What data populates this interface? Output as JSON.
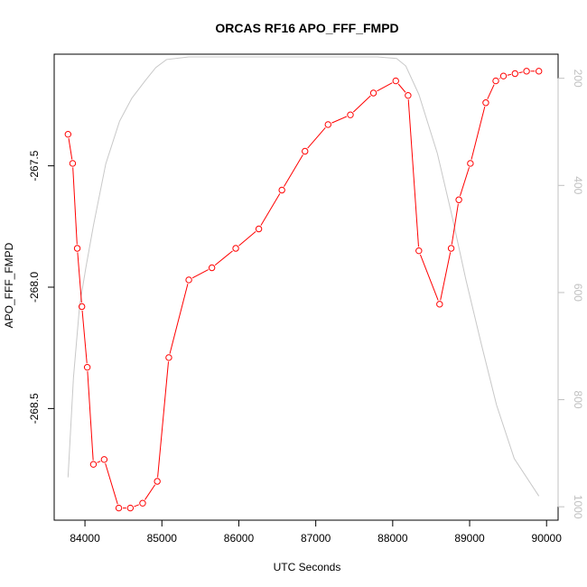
{
  "chart_data": {
    "type": "line",
    "title": "ORCAS RF16 APO_FFF_FMPD",
    "xlabel": "UTC Seconds",
    "ylabel": "APO_FFF_FMPD",
    "xlim": [
      83600,
      90150
    ],
    "ylim": [
      -268.96,
      -267.04
    ],
    "y2lim": [
      1025,
      155
    ],
    "x_ticks": [
      84000,
      85000,
      86000,
      87000,
      88000,
      89000,
      90000
    ],
    "x_tick_labels": [
      "84000",
      "85000",
      "86000",
      "87000",
      "88000",
      "89000",
      "90000"
    ],
    "y_ticks": [
      -267.5,
      -268.0,
      -268.5
    ],
    "y_tick_labels": [
      "-267.5",
      "-268.0",
      "-268.5"
    ],
    "y2_ticks": [
      200,
      400,
      600,
      800,
      1000
    ],
    "y2_tick_labels": [
      "200",
      "400",
      "600",
      "800",
      "1000"
    ],
    "grid": false,
    "colors": {
      "series": "#ff0000",
      "secondary": "#c8c8c8",
      "frame": "#000000",
      "secondary_axis": "#c0c0c0"
    },
    "series": [
      {
        "x": [
          83780,
          83840,
          83900,
          83960,
          84030,
          84110,
          84250,
          84440,
          84590,
          84750,
          84940,
          85090,
          85350,
          85650,
          85960,
          86260,
          86560,
          86860,
          87160,
          87450,
          87750,
          88040,
          88200,
          88340,
          88610,
          88760,
          88860,
          89010,
          89210,
          89340,
          89440,
          89590,
          89740,
          89900
        ],
        "values": [
          -267.37,
          -267.49,
          -267.84,
          -268.08,
          -268.33,
          -268.73,
          -268.71,
          -268.91,
          -268.91,
          -268.89,
          -268.8,
          -268.29,
          -267.97,
          -267.92,
          -267.84,
          -267.76,
          -267.6,
          -267.44,
          -267.33,
          -267.29,
          -267.2,
          -267.15,
          -267.21,
          -267.85,
          -268.07,
          -267.84,
          -267.64,
          -267.49,
          -267.24,
          -267.15,
          -267.13,
          -267.12,
          -267.11,
          -267.11
        ]
      },
      {
        "axis": "right",
        "x": [
          83780,
          83850,
          83930,
          84010,
          84110,
          84270,
          84450,
          84610,
          84780,
          84920,
          85060,
          85350,
          85700,
          86500,
          87200,
          87800,
          88050,
          88170,
          88340,
          88580,
          88760,
          88950,
          89150,
          89350,
          89580,
          89900
        ],
        "values": [
          945,
          760,
          625,
          555,
          475,
          360,
          280,
          237,
          205,
          180,
          165,
          160,
          160,
          160,
          160,
          160,
          163,
          177,
          230,
          340,
          450,
          575,
          695,
          810,
          910,
          980
        ]
      }
    ]
  }
}
